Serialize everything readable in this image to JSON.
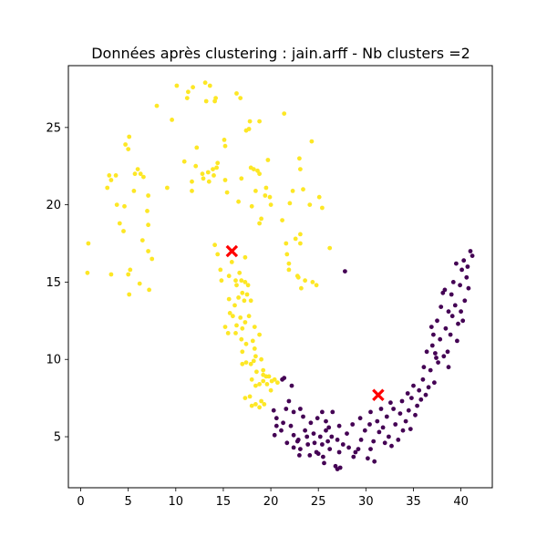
{
  "chart_data": {
    "type": "scatter",
    "title": "Données après clustering : jain.arff - Nb clusters =2",
    "xlabel": "",
    "ylabel": "",
    "xlim": [
      -1.3,
      43.3
    ],
    "ylim": [
      1.7,
      29.0
    ],
    "xticks": [
      0,
      5,
      10,
      15,
      20,
      25,
      30,
      35,
      40
    ],
    "yticks": [
      5,
      10,
      15,
      20,
      25
    ],
    "grid": false,
    "legend": "none",
    "colors": {
      "cluster_0": "#440154",
      "cluster_1": "#fde725",
      "centroid": "#ff0000"
    },
    "series": [
      {
        "cluster": 1,
        "points": [
          [
            0.8,
            17.5
          ],
          [
            0.7,
            15.6
          ],
          [
            2.8,
            21.1
          ],
          [
            3.0,
            21.9
          ],
          [
            3.2,
            21.6
          ],
          [
            3.7,
            21.9
          ],
          [
            3.2,
            15.5
          ],
          [
            3.8,
            20.0
          ],
          [
            4.1,
            18.8
          ],
          [
            4.6,
            19.9
          ],
          [
            4.5,
            18.3
          ],
          [
            4.7,
            23.9
          ],
          [
            5.0,
            23.6
          ],
          [
            5.1,
            24.4
          ],
          [
            5.0,
            15.5
          ],
          [
            5.2,
            15.8
          ],
          [
            5.1,
            14.2
          ],
          [
            5.6,
            20.9
          ],
          [
            5.7,
            22.0
          ],
          [
            6.0,
            22.3
          ],
          [
            6.3,
            22.0
          ],
          [
            6.2,
            14.9
          ],
          [
            6.5,
            17.7
          ],
          [
            6.6,
            21.8
          ],
          [
            7.0,
            19.6
          ],
          [
            7.1,
            20.6
          ],
          [
            7.1,
            18.7
          ],
          [
            7.1,
            17.0
          ],
          [
            7.2,
            14.5
          ],
          [
            7.5,
            16.5
          ],
          [
            8.0,
            26.4
          ],
          [
            9.1,
            21.1
          ],
          [
            9.6,
            25.5
          ],
          [
            10.1,
            27.7
          ],
          [
            10.9,
            22.8
          ],
          [
            11.2,
            26.9
          ],
          [
            11.3,
            27.3
          ],
          [
            11.7,
            20.9
          ],
          [
            11.7,
            21.5
          ],
          [
            11.8,
            27.6
          ],
          [
            12.1,
            22.5
          ],
          [
            12.2,
            23.7
          ],
          [
            12.8,
            22.0
          ],
          [
            12.9,
            21.7
          ],
          [
            13.1,
            27.9
          ],
          [
            13.2,
            26.7
          ],
          [
            13.4,
            22.1
          ],
          [
            13.5,
            21.5
          ],
          [
            13.6,
            27.7
          ],
          [
            13.9,
            22.3
          ],
          [
            14.0,
            21.9
          ],
          [
            14.1,
            26.7
          ],
          [
            14.2,
            26.9
          ],
          [
            14.3,
            22.4
          ],
          [
            14.4,
            22.7
          ],
          [
            14.1,
            17.4
          ],
          [
            14.4,
            16.8
          ],
          [
            14.7,
            15.8
          ],
          [
            14.8,
            15.1
          ],
          [
            15.1,
            24.2
          ],
          [
            15.2,
            23.8
          ],
          [
            15.2,
            21.6
          ],
          [
            15.4,
            20.8
          ],
          [
            15.6,
            15.4
          ],
          [
            15.9,
            16.3
          ],
          [
            16.4,
            27.2
          ],
          [
            16.6,
            20.2
          ],
          [
            16.8,
            26.9
          ],
          [
            16.9,
            21.7
          ],
          [
            16.3,
            15.1
          ],
          [
            16.4,
            14.8
          ],
          [
            16.6,
            14.0
          ],
          [
            16.7,
            15.6
          ],
          [
            16.9,
            15.1
          ],
          [
            17.0,
            14.3
          ],
          [
            17.3,
            15.0
          ],
          [
            17.3,
            16.6
          ],
          [
            17.4,
            24.8
          ],
          [
            17.7,
            24.9
          ],
          [
            17.8,
            25.4
          ],
          [
            17.9,
            22.4
          ],
          [
            18.0,
            19.9
          ],
          [
            18.2,
            22.3
          ],
          [
            18.4,
            20.9
          ],
          [
            18.6,
            22.2
          ],
          [
            18.8,
            22.0
          ],
          [
            18.8,
            25.4
          ],
          [
            18.8,
            18.8
          ],
          [
            19.0,
            19.1
          ],
          [
            19.4,
            20.6
          ],
          [
            19.5,
            21.1
          ],
          [
            19.7,
            22.9
          ],
          [
            19.9,
            20.5
          ],
          [
            20.0,
            20.0
          ],
          [
            21.2,
            19.0
          ],
          [
            21.4,
            25.9
          ],
          [
            21.6,
            17.5
          ],
          [
            21.7,
            16.8
          ],
          [
            21.9,
            16.2
          ],
          [
            21.9,
            15.8
          ],
          [
            22.0,
            20.1
          ],
          [
            22.3,
            20.9
          ],
          [
            22.6,
            17.8
          ],
          [
            22.8,
            15.4
          ],
          [
            22.9,
            15.3
          ],
          [
            23.0,
            23.0
          ],
          [
            23.1,
            22.3
          ],
          [
            23.1,
            18.1
          ],
          [
            23.1,
            17.5
          ],
          [
            23.2,
            14.6
          ],
          [
            23.4,
            21.0
          ],
          [
            23.6,
            15.1
          ],
          [
            24.1,
            20.0
          ],
          [
            24.3,
            24.1
          ],
          [
            24.4,
            15.0
          ],
          [
            24.8,
            14.8
          ],
          [
            25.1,
            20.5
          ],
          [
            25.4,
            19.8
          ],
          [
            26.2,
            17.2
          ],
          [
            15.2,
            12.1
          ],
          [
            15.5,
            11.7
          ],
          [
            15.6,
            13.9
          ],
          [
            15.7,
            13.0
          ],
          [
            16.0,
            12.8
          ],
          [
            16.2,
            13.5
          ],
          [
            16.3,
            11.7
          ],
          [
            16.4,
            12.2
          ],
          [
            16.8,
            12.7
          ],
          [
            16.9,
            11.3
          ],
          [
            17.2,
            13.8
          ],
          [
            17.3,
            12.4
          ],
          [
            17.5,
            14.2
          ],
          [
            17.6,
            14.8
          ],
          [
            17.7,
            12.8
          ],
          [
            17.9,
            13.8
          ],
          [
            17.0,
            12.0
          ],
          [
            17.4,
            11.0
          ],
          [
            17.0,
            10.5
          ],
          [
            17.4,
            9.8
          ],
          [
            17.0,
            9.7
          ],
          [
            17.9,
            9.7
          ],
          [
            18.3,
            12.1
          ],
          [
            18.1,
            11.2
          ],
          [
            18.3,
            10.7
          ],
          [
            18.4,
            10.2
          ],
          [
            18.8,
            11.6
          ],
          [
            19.0,
            10.0
          ],
          [
            19.2,
            9.3
          ],
          [
            18.2,
            9.9
          ],
          [
            18.0,
            8.7
          ],
          [
            18.4,
            8.3
          ],
          [
            18.5,
            9.2
          ],
          [
            18.8,
            8.4
          ],
          [
            19.2,
            8.6
          ],
          [
            19.2,
            9.0
          ],
          [
            19.5,
            8.9
          ],
          [
            19.6,
            8.4
          ],
          [
            19.8,
            8.9
          ],
          [
            20.1,
            8.6
          ],
          [
            20.0,
            8.0
          ],
          [
            20.4,
            8.7
          ],
          [
            20.7,
            8.5
          ],
          [
            17.3,
            7.5
          ],
          [
            17.8,
            7.6
          ],
          [
            18.0,
            7.0
          ],
          [
            18.4,
            7.1
          ],
          [
            18.8,
            6.9
          ],
          [
            19.0,
            7.3
          ],
          [
            19.3,
            7.1
          ]
        ]
      },
      {
        "cluster": 0,
        "points": [
          [
            21.2,
            8.7
          ],
          [
            21.4,
            8.8
          ],
          [
            21.9,
            7.3
          ],
          [
            21.6,
            6.8
          ],
          [
            22.2,
            8.3
          ],
          [
            22.4,
            6.6
          ],
          [
            23.1,
            6.8
          ],
          [
            20.3,
            6.7
          ],
          [
            20.6,
            6.2
          ],
          [
            20.6,
            5.7
          ],
          [
            20.4,
            5.1
          ],
          [
            21.3,
            5.9
          ],
          [
            21.1,
            5.4
          ],
          [
            21.7,
            4.6
          ],
          [
            22.1,
            5.7
          ],
          [
            22.4,
            5.1
          ],
          [
            22.8,
            4.7
          ],
          [
            22.9,
            4.8
          ],
          [
            22.4,
            4.3
          ],
          [
            23.1,
            4.2
          ],
          [
            23.0,
            3.8
          ],
          [
            23.4,
            6.3
          ],
          [
            23.6,
            5.4
          ],
          [
            23.8,
            5.0
          ],
          [
            23.9,
            4.5
          ],
          [
            24.1,
            3.8
          ],
          [
            24.2,
            5.9
          ],
          [
            24.5,
            5.2
          ],
          [
            24.6,
            4.6
          ],
          [
            24.8,
            4.0
          ],
          [
            24.9,
            6.2
          ],
          [
            25.0,
            3.9
          ],
          [
            25.2,
            5.0
          ],
          [
            25.4,
            4.5
          ],
          [
            25.4,
            6.6
          ],
          [
            25.5,
            3.7
          ],
          [
            25.6,
            3.3
          ],
          [
            25.8,
            5.4
          ],
          [
            25.8,
            6.0
          ],
          [
            26.0,
            4.7
          ],
          [
            26.2,
            4.2
          ],
          [
            26.1,
            5.6
          ],
          [
            26.4,
            5.0
          ],
          [
            26.5,
            6.6
          ],
          [
            26.8,
            3.1
          ],
          [
            27.0,
            2.9
          ],
          [
            27.3,
            3.0
          ],
          [
            27.2,
            4.0
          ],
          [
            27.0,
            4.8
          ],
          [
            27.2,
            5.7
          ],
          [
            27.6,
            4.5
          ],
          [
            27.8,
            15.7
          ],
          [
            28.0,
            5.2
          ],
          [
            28.2,
            4.3
          ],
          [
            28.6,
            5.8
          ],
          [
            28.7,
            3.7
          ],
          [
            28.9,
            4.0
          ],
          [
            29.2,
            4.2
          ],
          [
            29.4,
            6.2
          ],
          [
            29.5,
            4.8
          ],
          [
            29.9,
            5.4
          ],
          [
            30.2,
            3.6
          ],
          [
            30.4,
            5.8
          ],
          [
            30.5,
            4.2
          ],
          [
            30.5,
            6.6
          ],
          [
            30.8,
            4.7
          ],
          [
            30.9,
            3.4
          ],
          [
            31.2,
            6.0
          ],
          [
            31.4,
            5.3
          ],
          [
            31.6,
            6.8
          ],
          [
            31.8,
            5.6
          ],
          [
            32.0,
            4.6
          ],
          [
            32.2,
            6.3
          ],
          [
            32.4,
            5.0
          ],
          [
            32.6,
            7.2
          ],
          [
            32.7,
            4.4
          ],
          [
            32.9,
            6.8
          ],
          [
            33.1,
            5.8
          ],
          [
            33.4,
            4.8
          ],
          [
            33.6,
            6.5
          ],
          [
            33.8,
            7.3
          ],
          [
            33.9,
            5.4
          ],
          [
            34.2,
            6.0
          ],
          [
            34.4,
            7.8
          ],
          [
            34.5,
            6.7
          ],
          [
            34.7,
            5.5
          ],
          [
            34.8,
            7.5
          ],
          [
            35.0,
            8.3
          ],
          [
            35.2,
            6.4
          ],
          [
            35.4,
            7.0
          ],
          [
            35.6,
            8.0
          ],
          [
            35.8,
            7.4
          ],
          [
            36.0,
            8.7
          ],
          [
            36.1,
            9.5
          ],
          [
            36.3,
            7.7
          ],
          [
            36.4,
            10.5
          ],
          [
            36.6,
            8.2
          ],
          [
            36.8,
            9.3
          ],
          [
            37.0,
            10.9
          ],
          [
            37.1,
            11.6
          ],
          [
            37.2,
            8.5
          ],
          [
            37.4,
            10.1
          ],
          [
            37.5,
            12.5
          ],
          [
            37.6,
            9.8
          ],
          [
            37.8,
            11.3
          ],
          [
            37.9,
            13.4
          ],
          [
            38.1,
            14.3
          ],
          [
            38.3,
            14.5
          ],
          [
            38.4,
            12.0
          ],
          [
            38.6,
            10.5
          ],
          [
            38.7,
            13.1
          ],
          [
            38.9,
            11.6
          ],
          [
            39.0,
            14.2
          ],
          [
            39.1,
            12.8
          ],
          [
            39.2,
            15.0
          ],
          [
            39.4,
            13.5
          ],
          [
            39.5,
            16.2
          ],
          [
            39.7,
            12.3
          ],
          [
            39.9,
            14.8
          ],
          [
            40.0,
            13.1
          ],
          [
            40.1,
            15.8
          ],
          [
            40.3,
            16.4
          ],
          [
            40.4,
            13.8
          ],
          [
            40.6,
            15.3
          ],
          [
            40.7,
            16.0
          ],
          [
            40.8,
            14.6
          ],
          [
            41.0,
            17.0
          ],
          [
            41.2,
            16.7
          ],
          [
            40.2,
            12.5
          ],
          [
            39.6,
            11.2
          ],
          [
            38.7,
            9.5
          ],
          [
            38.2,
            10.2
          ],
          [
            37.3,
            10.4
          ],
          [
            36.9,
            12.1
          ]
        ]
      }
    ],
    "centroids": [
      [
        15.9,
        17.0
      ],
      [
        31.3,
        7.7
      ]
    ]
  }
}
